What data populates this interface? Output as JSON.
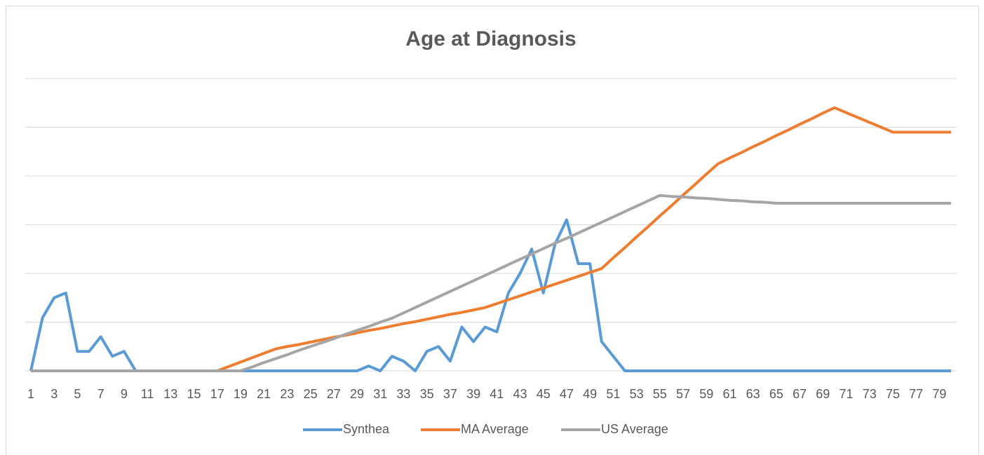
{
  "chart_data": {
    "type": "line",
    "title": "Age at Diagnosis",
    "categories": [
      1,
      null,
      3,
      null,
      5,
      null,
      7,
      null,
      9,
      null,
      11,
      null,
      13,
      null,
      15,
      null,
      17,
      null,
      19,
      null,
      21,
      null,
      23,
      null,
      25,
      null,
      27,
      null,
      29,
      null,
      31,
      null,
      33,
      null,
      35,
      null,
      37,
      null,
      39,
      null,
      41,
      null,
      43,
      null,
      45,
      null,
      47,
      null,
      49,
      null,
      51,
      null,
      53,
      null,
      55,
      null,
      57,
      null,
      59,
      null,
      61,
      null,
      63,
      null,
      65,
      null,
      67,
      null,
      69,
      null,
      71,
      null,
      73,
      null,
      75,
      null,
      77,
      null,
      79,
      null
    ],
    "series": [
      {
        "name": "Synthea",
        "color": "#5b9bd5",
        "values": [
          0,
          1.09,
          1.5,
          1.6,
          0.4,
          0.4,
          0.7,
          0.3,
          0.4,
          0,
          0,
          0,
          0,
          0,
          0,
          0,
          0,
          0,
          0,
          0,
          0,
          0,
          0,
          0,
          0,
          0,
          0,
          0,
          0,
          0.1,
          0,
          0.3,
          0.2,
          0,
          0.4,
          0.5,
          0.2,
          0.9,
          0.6,
          0.9,
          0.8,
          1.6,
          2.0,
          2.5,
          1.6,
          2.6,
          3.1,
          2.2,
          2.2,
          0.6,
          0.3,
          0,
          0,
          0,
          0,
          0,
          0,
          0,
          0,
          0,
          0,
          0,
          0,
          0,
          0,
          0,
          0,
          0,
          0,
          0,
          0,
          0,
          0,
          0,
          0,
          0,
          0,
          0,
          0,
          0
        ]
      },
      {
        "name": "MA Average",
        "color": "#ed7d31",
        "values": [
          0,
          0,
          0,
          0,
          0,
          0,
          0,
          0,
          0,
          0,
          0,
          0,
          0,
          0,
          0,
          0,
          0,
          0.09,
          0.18,
          0.27,
          0.36,
          0.45,
          0.5,
          0.54,
          0.59,
          0.64,
          0.69,
          0.73,
          0.78,
          0.83,
          0.87,
          0.92,
          0.97,
          1.01,
          1.06,
          1.11,
          1.16,
          1.2,
          1.25,
          1.3,
          1.38,
          1.46,
          1.54,
          1.62,
          1.7,
          1.78,
          1.86,
          1.94,
          2.02,
          2.1,
          2.32,
          2.53,
          2.75,
          2.96,
          3.18,
          3.39,
          3.61,
          3.82,
          4.04,
          4.25,
          4.37,
          4.48,
          4.6,
          4.71,
          4.83,
          4.94,
          5.06,
          5.17,
          5.29,
          5.4,
          5.3,
          5.2,
          5.1,
          5.0,
          4.9,
          4.9,
          4.9,
          4.9,
          4.9,
          4.9
        ]
      },
      {
        "name": "US Average",
        "color": "#a5a5a5",
        "values": [
          0,
          0,
          0,
          0,
          0,
          0,
          0,
          0,
          0,
          0,
          0,
          0,
          0,
          0,
          0,
          0,
          0,
          0,
          0,
          0.08,
          0.17,
          0.25,
          0.33,
          0.42,
          0.5,
          0.58,
          0.66,
          0.75,
          0.83,
          0.91,
          1.0,
          1.08,
          1.19,
          1.3,
          1.41,
          1.52,
          1.63,
          1.74,
          1.85,
          1.96,
          2.07,
          2.18,
          2.29,
          2.4,
          2.51,
          2.62,
          2.72,
          2.83,
          2.94,
          3.05,
          3.16,
          3.27,
          3.38,
          3.49,
          3.6,
          3.58,
          3.57,
          3.55,
          3.54,
          3.52,
          3.5,
          3.49,
          3.47,
          3.46,
          3.44,
          3.44,
          3.44,
          3.44,
          3.44,
          3.44,
          3.44,
          3.44,
          3.44,
          3.44,
          3.44,
          3.44,
          3.44,
          3.44,
          3.44,
          3.44
        ]
      }
    ],
    "ylim": [
      0,
      6
    ],
    "yticks": [
      0,
      1,
      2,
      3,
      4,
      5,
      6
    ],
    "grid": true,
    "legend": "bottom"
  }
}
